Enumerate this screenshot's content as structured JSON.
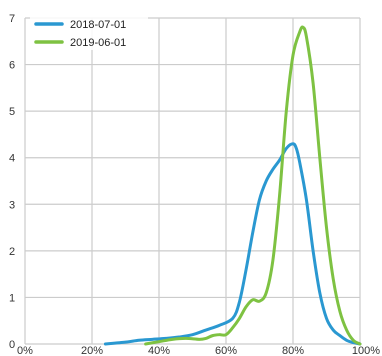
{
  "chart_data": {
    "type": "line",
    "title": "",
    "xlabel": "",
    "ylabel": "",
    "xlim": [
      0,
      100
    ],
    "ylim": [
      0,
      7
    ],
    "grid": true,
    "legend_position": "top-left",
    "x_ticks": [
      {
        "value": 0,
        "label": "0%"
      },
      {
        "value": 20,
        "label": "20%"
      },
      {
        "value": 40,
        "label": "40%"
      },
      {
        "value": 60,
        "label": "60%"
      },
      {
        "value": 80,
        "label": "80%"
      },
      {
        "value": 100,
        "label": "100%"
      }
    ],
    "y_ticks": [
      {
        "value": 0,
        "label": "0"
      },
      {
        "value": 1,
        "label": "1"
      },
      {
        "value": 2,
        "label": "2"
      },
      {
        "value": 3,
        "label": "3"
      },
      {
        "value": 4,
        "label": "4"
      },
      {
        "value": 5,
        "label": "5"
      },
      {
        "value": 6,
        "label": "6"
      },
      {
        "value": 7,
        "label": "7"
      }
    ],
    "series": [
      {
        "name": "2018-07-01",
        "color": "#2a98d1",
        "points": [
          [
            24,
            0.0
          ],
          [
            30,
            0.04
          ],
          [
            34,
            0.08
          ],
          [
            38,
            0.1
          ],
          [
            42,
            0.12
          ],
          [
            46,
            0.15
          ],
          [
            50,
            0.2
          ],
          [
            54,
            0.3
          ],
          [
            58,
            0.4
          ],
          [
            62,
            0.55
          ],
          [
            64,
            0.9
          ],
          [
            66,
            1.6
          ],
          [
            68,
            2.4
          ],
          [
            70,
            3.1
          ],
          [
            72,
            3.5
          ],
          [
            74,
            3.75
          ],
          [
            76,
            3.95
          ],
          [
            78,
            4.2
          ],
          [
            80,
            4.3
          ],
          [
            81,
            4.2
          ],
          [
            82,
            3.9
          ],
          [
            84,
            3.1
          ],
          [
            86,
            2.0
          ],
          [
            88,
            1.1
          ],
          [
            90,
            0.55
          ],
          [
            92,
            0.3
          ],
          [
            94,
            0.18
          ],
          [
            96,
            0.08
          ],
          [
            98,
            0.03
          ],
          [
            100,
            0.0
          ]
        ]
      },
      {
        "name": "2019-06-01",
        "color": "#7ec242",
        "points": [
          [
            36,
            0.0
          ],
          [
            40,
            0.05
          ],
          [
            44,
            0.1
          ],
          [
            48,
            0.12
          ],
          [
            52,
            0.1
          ],
          [
            54,
            0.12
          ],
          [
            56,
            0.18
          ],
          [
            58,
            0.2
          ],
          [
            60,
            0.2
          ],
          [
            62,
            0.35
          ],
          [
            64,
            0.55
          ],
          [
            66,
            0.8
          ],
          [
            68,
            0.95
          ],
          [
            70,
            0.92
          ],
          [
            72,
            1.1
          ],
          [
            74,
            1.8
          ],
          [
            76,
            3.2
          ],
          [
            78,
            5.0
          ],
          [
            80,
            6.2
          ],
          [
            82,
            6.7
          ],
          [
            83,
            6.8
          ],
          [
            84,
            6.6
          ],
          [
            86,
            5.6
          ],
          [
            88,
            4.0
          ],
          [
            90,
            2.5
          ],
          [
            92,
            1.4
          ],
          [
            94,
            0.7
          ],
          [
            96,
            0.3
          ],
          [
            98,
            0.08
          ],
          [
            100,
            0.0
          ]
        ]
      }
    ]
  }
}
